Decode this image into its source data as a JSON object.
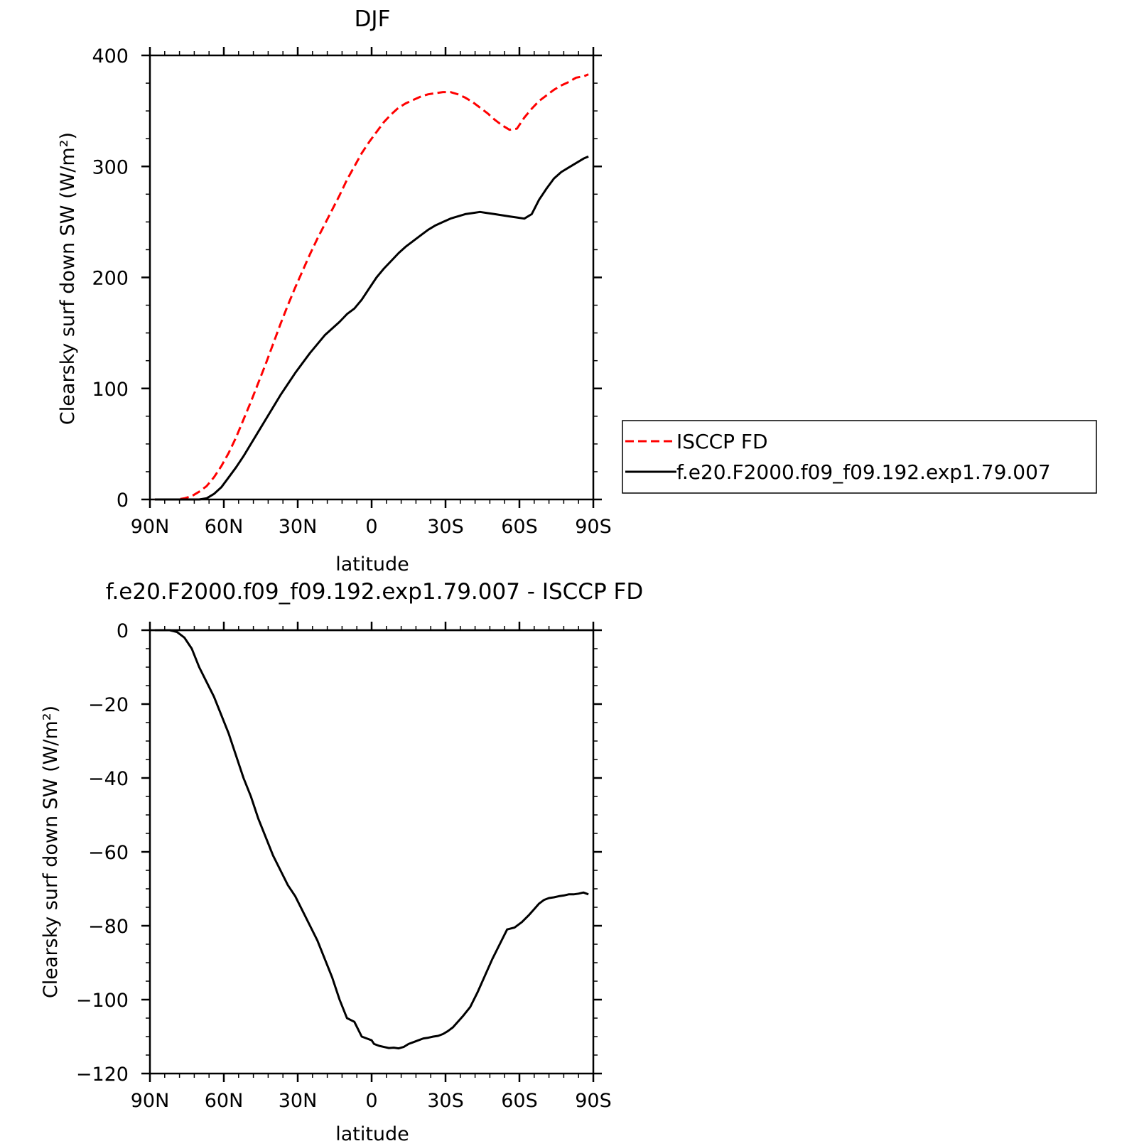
{
  "chart_data": [
    {
      "type": "line",
      "title": "DJF",
      "xlabel": "latitude",
      "ylabel": "Clearsky surf down SW (W/m²)",
      "xlim": [
        -90,
        90
      ],
      "ylim": [
        0,
        400
      ],
      "xticks": [
        {
          "value": -90,
          "label": "90N"
        },
        {
          "value": -60,
          "label": "60N"
        },
        {
          "value": -30,
          "label": "30N"
        },
        {
          "value": 0,
          "label": "0"
        },
        {
          "value": 30,
          "label": "30S"
        },
        {
          "value": 60,
          "label": "60S"
        },
        {
          "value": 90,
          "label": "90S"
        }
      ],
      "yticks": [
        {
          "value": 0,
          "label": "0"
        },
        {
          "value": 100,
          "label": "100"
        },
        {
          "value": 200,
          "label": "200"
        },
        {
          "value": 300,
          "label": "300"
        },
        {
          "value": 400,
          "label": "400"
        }
      ],
      "legend_position": "right",
      "series": [
        {
          "name": "ISCCP FD",
          "color": "#ff0000",
          "dash": true,
          "x": [
            -88,
            -85,
            -82,
            -79,
            -76,
            -73,
            -70,
            -67,
            -64,
            -61,
            -58,
            -55,
            -52,
            -49,
            -46,
            -43,
            -40,
            -37,
            -34,
            -31,
            -28,
            -25,
            -22,
            -19,
            -16,
            -13,
            -10,
            -7,
            -4,
            -1,
            2,
            5,
            8,
            11,
            14,
            17,
            20,
            23,
            26,
            29,
            32,
            35,
            38,
            41,
            44,
            47,
            50,
            53,
            56,
            59,
            62,
            65,
            68,
            71,
            74,
            77,
            80,
            83,
            86,
            88
          ],
          "y": [
            0,
            0,
            0,
            0,
            1,
            3,
            7,
            12,
            20,
            30,
            42,
            56,
            72,
            88,
            105,
            122,
            140,
            158,
            175,
            191,
            206,
            221,
            235,
            248,
            261,
            274,
            288,
            300,
            312,
            322,
            331,
            340,
            347,
            353,
            357,
            360,
            363,
            365,
            366,
            367,
            367,
            365,
            362,
            358,
            353,
            348,
            342,
            337,
            333,
            334,
            344,
            352,
            359,
            364,
            369,
            373,
            376,
            380,
            381,
            383
          ]
        },
        {
          "name": "f.e20.F2000.f09_f09.192.exp1.79.007",
          "color": "#000000",
          "dash": false,
          "x": [
            -88,
            -85,
            -82,
            -79,
            -76,
            -73,
            -70,
            -67,
            -64,
            -61,
            -58,
            -55,
            -52,
            -49,
            -46,
            -43,
            -40,
            -37,
            -34,
            -31,
            -28,
            -25,
            -22,
            -19,
            -16,
            -13,
            -10,
            -7,
            -4,
            -1,
            2,
            5,
            8,
            11,
            14,
            17,
            20,
            23,
            26,
            29,
            32,
            35,
            38,
            41,
            44,
            47,
            50,
            53,
            56,
            59,
            62,
            65,
            68,
            71,
            74,
            77,
            80,
            83,
            86,
            88
          ],
          "y": [
            0,
            0,
            0,
            0,
            0,
            0,
            0,
            1,
            5,
            11,
            20,
            29,
            39,
            50,
            61,
            72,
            83,
            94,
            104,
            114,
            123,
            132,
            140,
            148,
            154,
            160,
            167,
            172,
            180,
            190,
            200,
            208,
            215,
            222,
            228,
            233,
            238,
            243,
            247,
            250,
            253,
            255,
            257,
            258,
            259,
            258,
            257,
            256,
            255,
            254,
            253,
            257,
            270,
            280,
            289,
            295,
            299,
            303,
            307,
            309
          ]
        }
      ]
    },
    {
      "type": "line",
      "title": "f.e20.F2000.f09_f09.192.exp1.79.007 - ISCCP FD",
      "xlabel": "latitude",
      "ylabel": "Clearsky surf down SW (W/m²)",
      "xlim": [
        -90,
        90
      ],
      "ylim": [
        -120,
        0
      ],
      "xticks": [
        {
          "value": -90,
          "label": "90N"
        },
        {
          "value": -60,
          "label": "60N"
        },
        {
          "value": -30,
          "label": "30N"
        },
        {
          "value": 0,
          "label": "0"
        },
        {
          "value": 30,
          "label": "30S"
        },
        {
          "value": 60,
          "label": "60S"
        },
        {
          "value": 90,
          "label": "90S"
        }
      ],
      "yticks": [
        {
          "value": 0,
          "label": "0"
        },
        {
          "value": -20,
          "label": "−20"
        },
        {
          "value": -40,
          "label": "−40"
        },
        {
          "value": -60,
          "label": "−60"
        },
        {
          "value": -80,
          "label": "−80"
        },
        {
          "value": -100,
          "label": "−100"
        },
        {
          "value": -120,
          "label": "−120"
        }
      ],
      "zero_line": true,
      "series": [
        {
          "color": "#000000",
          "dash": false,
          "x": [
            -88,
            -82,
            -79,
            -76,
            -73,
            -70,
            -67,
            -64,
            -61,
            -58,
            -55,
            -52,
            -49,
            -46,
            -43,
            -40,
            -37,
            -34,
            -31,
            -28,
            -25,
            -22,
            -19,
            -16,
            -13,
            -10,
            -7,
            -4,
            -2,
            0,
            1,
            3,
            5,
            7,
            9,
            11,
            13,
            15,
            17,
            19,
            21,
            23,
            25,
            27,
            29,
            31,
            33,
            35,
            37,
            40,
            43,
            46,
            49,
            52,
            55,
            58,
            61,
            64,
            66,
            68,
            70,
            72,
            74,
            76,
            78,
            80,
            82,
            84,
            86,
            88
          ],
          "y": [
            0,
            0,
            -0.5,
            -2,
            -5,
            -10,
            -14,
            -18,
            -23,
            -28,
            -34,
            -40,
            -45,
            -51,
            -56,
            -61,
            -65,
            -69,
            -72,
            -76,
            -80,
            -84,
            -89,
            -94,
            -100,
            -105,
            -106,
            -110,
            -110.5,
            -111,
            -112,
            -112.5,
            -112.8,
            -113.1,
            -113.0,
            -113.2,
            -112.8,
            -112.0,
            -111.5,
            -111.0,
            -110.5,
            -110.3,
            -110.0,
            -109.8,
            -109.3,
            -108.5,
            -107.5,
            -106.0,
            -104.5,
            -102.0,
            -98.0,
            -93.5,
            -89.0,
            -85.0,
            -81.0,
            -80.5,
            -79.0,
            -77.0,
            -75.5,
            -74.0,
            -73.0,
            -72.5,
            -72.3,
            -72.0,
            -71.8,
            -71.5,
            -71.5,
            -71.3,
            -71.0,
            -71.5
          ]
        }
      ]
    }
  ]
}
